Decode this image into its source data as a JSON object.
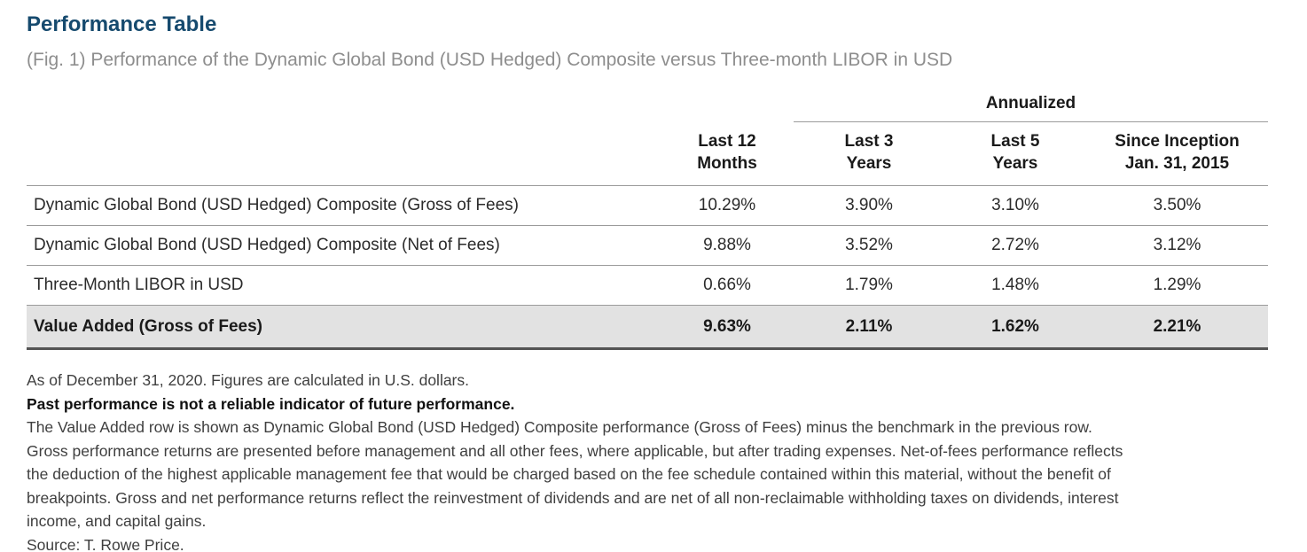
{
  "header": {
    "title": "Performance Table",
    "subtitle": "(Fig. 1) Performance of the Dynamic Global Bond (USD Hedged) Composite versus Three-month LIBOR in USD"
  },
  "table": {
    "group_header": "Annualized",
    "columns": [
      {
        "line1": "Last 12",
        "line2": "Months"
      },
      {
        "line1": "Last 3",
        "line2": "Years"
      },
      {
        "line1": "Last 5",
        "line2": "Years"
      },
      {
        "line1": "Since Inception",
        "line2": "Jan. 31, 2015"
      }
    ],
    "rows": [
      {
        "label": "Dynamic Global Bond (USD Hedged) Composite (Gross of Fees)",
        "values": [
          "10.29%",
          "3.90%",
          "3.10%",
          "3.50%"
        ]
      },
      {
        "label": "Dynamic Global Bond (USD Hedged) Composite (Net of Fees)",
        "values": [
          "9.88%",
          "3.52%",
          "2.72%",
          "3.12%"
        ]
      },
      {
        "label": "Three-Month LIBOR in USD",
        "values": [
          "0.66%",
          "1.79%",
          "1.48%",
          "1.29%"
        ]
      }
    ],
    "summary_row": {
      "label": "Value Added (Gross of Fees)",
      "values": [
        "9.63%",
        "2.11%",
        "1.62%",
        "2.21%"
      ]
    }
  },
  "footnotes": {
    "lines": [
      {
        "text": "As of December 31, 2020. Figures are calculated in U.S. dollars.",
        "bold": false
      },
      {
        "text": "Past performance is not a reliable indicator of future performance.",
        "bold": true
      },
      {
        "text": "The Value Added row is shown as Dynamic Global Bond (USD Hedged) Composite performance (Gross of Fees) minus the benchmark in the previous row.",
        "bold": false
      },
      {
        "text": "Gross performance returns are presented before management and all other fees, where applicable, but after trading expenses. Net-of-fees performance reflects",
        "bold": false
      },
      {
        "text": "the deduction of the highest applicable management fee that would be charged based on the fee schedule contained within this material, without the benefit of",
        "bold": false
      },
      {
        "text": "breakpoints. Gross and net performance returns reflect the reinvestment of dividends and are net of all non-reclaimable withholding taxes on dividends, interest",
        "bold": false
      },
      {
        "text": "income, and capital gains.",
        "bold": false
      },
      {
        "text": "Source: T. Rowe Price.",
        "bold": false
      }
    ]
  },
  "colors": {
    "title_navy": "#164a6e",
    "subtitle_gray": "#8e8e8e",
    "rule_gray": "#9b9b9b",
    "summary_bg": "#e2e2e2",
    "summary_rule": "#545454",
    "body_text": "#2b2b2b"
  }
}
